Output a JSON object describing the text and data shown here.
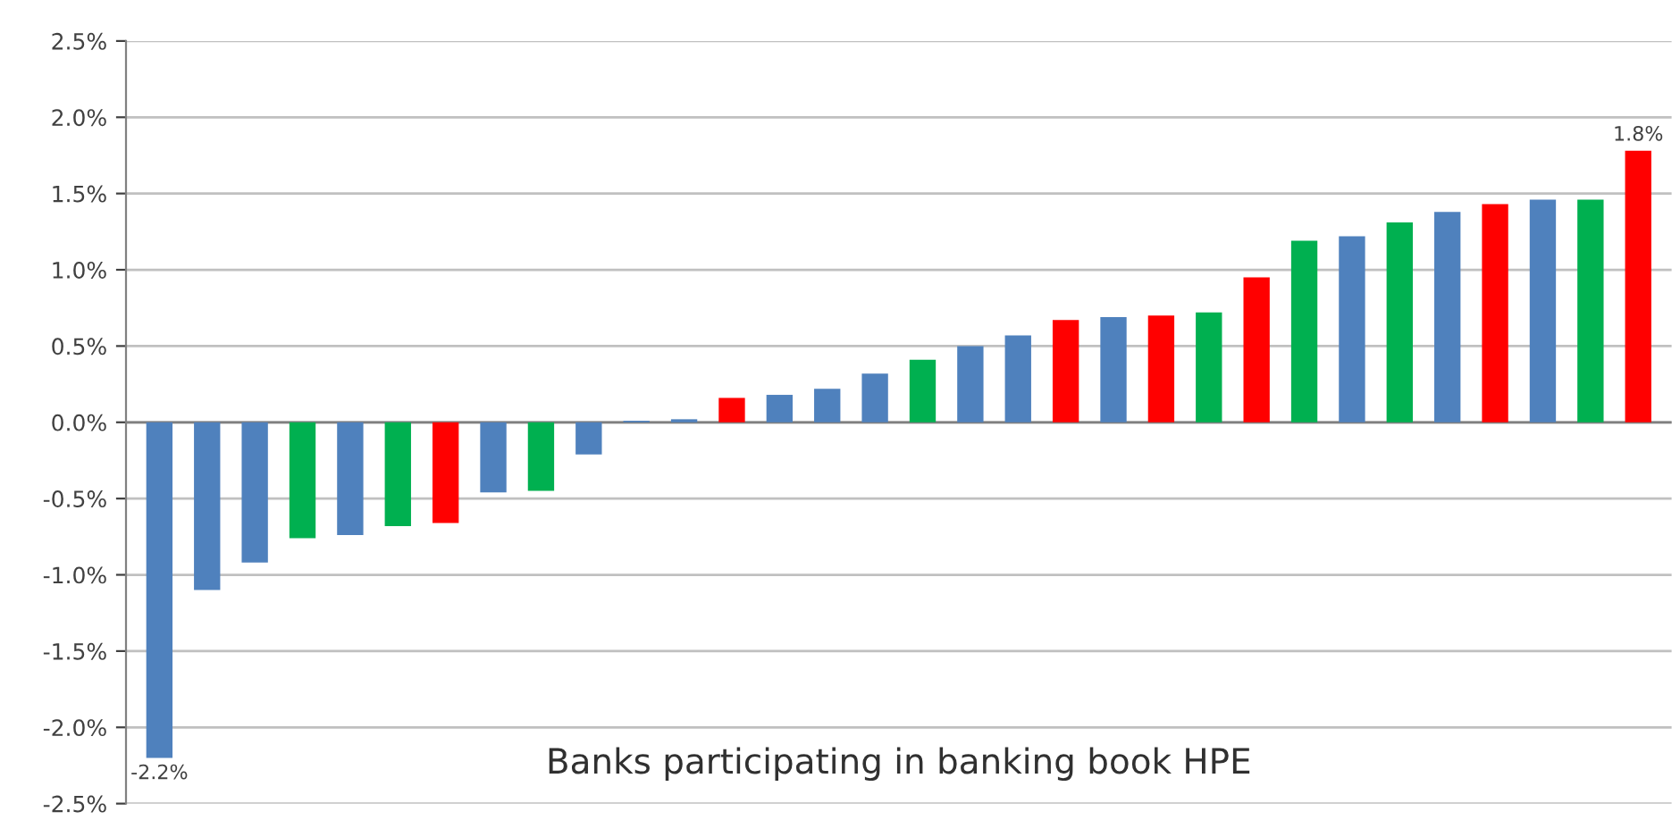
{
  "chart_data": {
    "type": "bar",
    "title": "Banks participating in banking book HPE",
    "categories": [
      null,
      null,
      null,
      null,
      null,
      null,
      null,
      null,
      null,
      null,
      null,
      null,
      null,
      null,
      null,
      null,
      null,
      null,
      null,
      null,
      null,
      null,
      null,
      null,
      null,
      null,
      null,
      null,
      null,
      null,
      null,
      null
    ],
    "values": [
      -2.2,
      -1.1,
      -0.92,
      -0.76,
      -0.74,
      -0.68,
      -0.66,
      -0.46,
      -0.45,
      -0.21,
      0.01,
      0.02,
      0.16,
      0.18,
      0.22,
      0.32,
      0.41,
      0.5,
      0.57,
      0.67,
      0.69,
      0.7,
      0.72,
      0.95,
      1.19,
      1.22,
      1.31,
      1.38,
      1.43,
      1.46,
      1.46,
      1.78
    ],
    "colors": [
      "#4f81bd",
      "#4f81bd",
      "#4f81bd",
      "#00b050",
      "#4f81bd",
      "#00b050",
      "#ff0000",
      "#4f81bd",
      "#00b050",
      "#4f81bd",
      "#4f81bd",
      "#4f81bd",
      "#ff0000",
      "#4f81bd",
      "#4f81bd",
      "#4f81bd",
      "#00b050",
      "#4f81bd",
      "#4f81bd",
      "#ff0000",
      "#4f81bd",
      "#ff0000",
      "#00b050",
      "#ff0000",
      "#00b050",
      "#4f81bd",
      "#00b050",
      "#4f81bd",
      "#ff0000",
      "#4f81bd",
      "#00b050",
      "#ff0000"
    ],
    "value_labels": [
      "-2.2%",
      null,
      null,
      null,
      null,
      null,
      null,
      null,
      null,
      null,
      null,
      null,
      null,
      null,
      null,
      null,
      null,
      null,
      null,
      null,
      null,
      null,
      null,
      null,
      null,
      null,
      null,
      null,
      null,
      null,
      null,
      "1.8%"
    ],
    "ylim": [
      -2.5,
      2.5
    ],
    "yticks": [
      {
        "value": -2.5,
        "label": "-2.5%"
      },
      {
        "value": -2.0,
        "label": "-2.0%"
      },
      {
        "value": -1.5,
        "label": "-1.5%"
      },
      {
        "value": -1.0,
        "label": "-1.0%"
      },
      {
        "value": -0.5,
        "label": "-0.5%"
      },
      {
        "value": 0.0,
        "label": "0.0%"
      },
      {
        "value": 0.5,
        "label": "0.5%"
      },
      {
        "value": 1.0,
        "label": "1.0%"
      },
      {
        "value": 1.5,
        "label": "1.5%"
      },
      {
        "value": 2.0,
        "label": "2.0%"
      },
      {
        "value": 2.5,
        "label": "2.5%"
      }
    ],
    "grid": "y",
    "legend": false
  }
}
